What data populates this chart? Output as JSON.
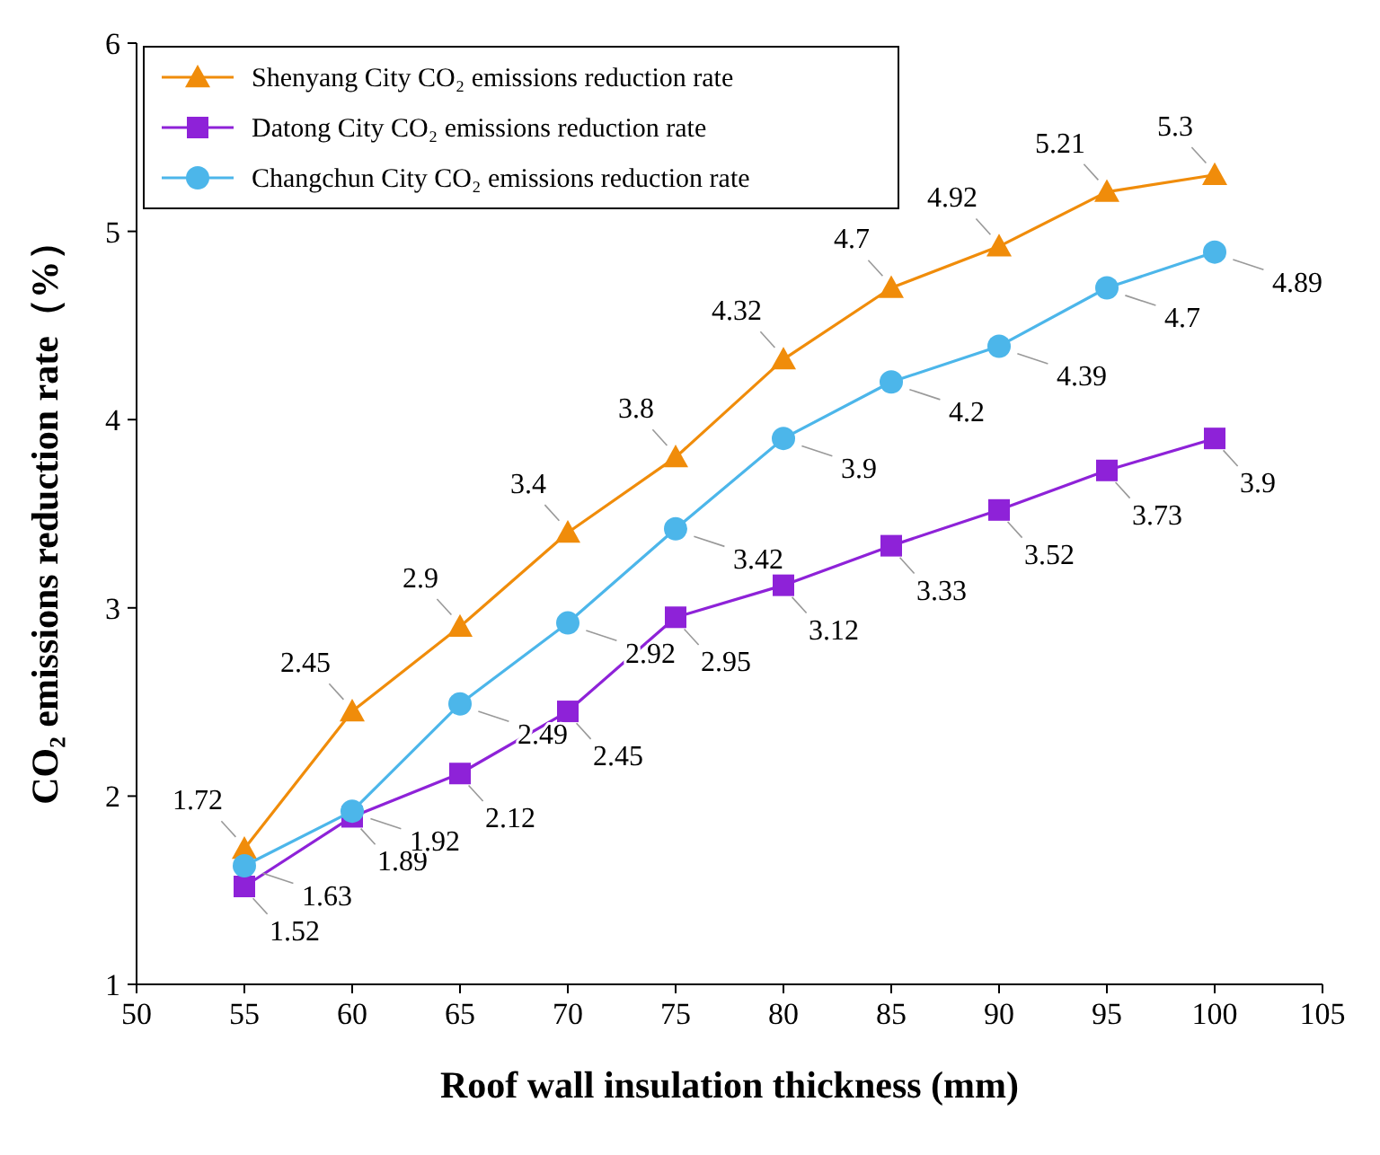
{
  "chart_data": {
    "type": "line",
    "xlabel": "Roof wall insulation thickness (mm)",
    "ylabel": "CO₂ emissions reduction rate（%）",
    "x": [
      55,
      60,
      65,
      70,
      75,
      80,
      85,
      90,
      95,
      100
    ],
    "series": [
      {
        "name": "Shenyang City CO₂ emissions reduction rate",
        "color": "#f08c0a",
        "marker": "triangle",
        "values": [
          1.72,
          2.45,
          2.9,
          3.4,
          3.8,
          4.32,
          4.7,
          4.92,
          5.21,
          5.3
        ]
      },
      {
        "name": "Datong City CO₂ emissions reduction rate",
        "color": "#8e22d8",
        "marker": "square",
        "values": [
          1.52,
          1.89,
          2.12,
          2.45,
          2.95,
          3.12,
          3.33,
          3.52,
          3.73,
          3.9
        ]
      },
      {
        "name": "Changchun City CO₂ emissions reduction rate",
        "color": "#4cb6ea",
        "marker": "circle",
        "values": [
          1.63,
          1.92,
          2.49,
          2.92,
          3.42,
          3.9,
          4.2,
          4.39,
          4.7,
          4.89
        ]
      }
    ],
    "xlim": [
      50,
      105
    ],
    "xticks": [
      50,
      55,
      60,
      65,
      70,
      75,
      80,
      85,
      90,
      95,
      100,
      105
    ],
    "ylim": [
      1,
      6
    ],
    "yticks": [
      1,
      2,
      3,
      4,
      5,
      6
    ],
    "grid": false,
    "legend": "top left",
    "data_labels": true,
    "line_style": "solid"
  }
}
